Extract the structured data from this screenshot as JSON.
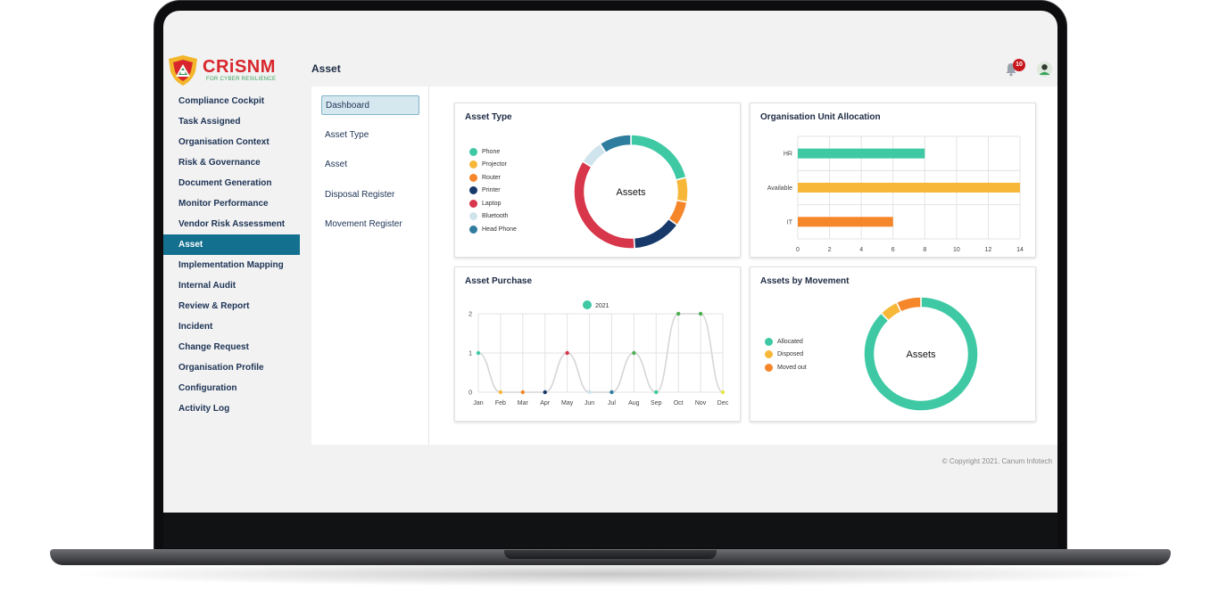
{
  "brand": {
    "name": "CRiSNM",
    "tagline": "FOR CYBER RESILIENCE"
  },
  "sidebar": {
    "items": [
      {
        "label": "Compliance Cockpit"
      },
      {
        "label": "Task Assigned"
      },
      {
        "label": "Organisation Context"
      },
      {
        "label": "Risk & Governance"
      },
      {
        "label": "Document Generation"
      },
      {
        "label": "Monitor Performance"
      },
      {
        "label": "Vendor Risk Assessment"
      },
      {
        "label": "Asset",
        "active": true
      },
      {
        "label": "Implementation Mapping"
      },
      {
        "label": "Internal Audit"
      },
      {
        "label": "Review & Report"
      },
      {
        "label": "Incident"
      },
      {
        "label": "Change Request"
      },
      {
        "label": "Organisation Profile"
      },
      {
        "label": "Configuration"
      },
      {
        "label": "Activity Log"
      }
    ]
  },
  "header": {
    "title": "Asset",
    "notification_count": "10"
  },
  "submenu": {
    "items": [
      {
        "label": "Dashboard",
        "active": true
      },
      {
        "label": "Asset Type"
      },
      {
        "label": "Asset"
      },
      {
        "label": "Disposal Register"
      },
      {
        "label": "Movement Register"
      }
    ]
  },
  "cards": {
    "asset_type": {
      "title": "Asset Type"
    },
    "org_unit": {
      "title": "Organisation Unit Allocation"
    },
    "asset_purchase": {
      "title": "Asset Purchase"
    },
    "movement": {
      "title": "Assets by Movement"
    }
  },
  "footer": {
    "text": "© Copyright 2021. Canum Infotech"
  },
  "chart_data": [
    {
      "type": "pie",
      "title": "Asset Type",
      "center_label": "Assets",
      "labels": [
        "Phone",
        "Projector",
        "Router",
        "Printer",
        "Laptop",
        "Bluetooth",
        "Head Phone"
      ],
      "values": [
        3,
        1,
        1,
        2,
        5,
        1,
        1.3
      ],
      "colors": [
        "#3ec9a4",
        "#f7b83a",
        "#f5862a",
        "#173a6b",
        "#d8364a",
        "#cfe4ec",
        "#2f7d9e"
      ],
      "legend": "left"
    },
    {
      "type": "bar",
      "orientation": "horizontal",
      "title": "Organisation Unit Allocation",
      "categories": [
        "HR",
        "Available",
        "IT"
      ],
      "values": [
        8,
        14,
        6
      ],
      "colors": [
        "#3ec9a4",
        "#f7b83a",
        "#f5862a"
      ],
      "xlim": [
        0,
        14
      ],
      "xticks": [
        0,
        2,
        4,
        6,
        8,
        10,
        12,
        14
      ],
      "grid": true
    },
    {
      "type": "line",
      "title": "Asset Purchase",
      "categories": [
        "Jan",
        "Feb",
        "Mar",
        "Apr",
        "May",
        "Jun",
        "Jul",
        "Aug",
        "Sep",
        "Oct",
        "Nov",
        "Dec"
      ],
      "series": [
        {
          "name": "2021",
          "values": [
            1,
            0,
            0,
            0,
            1,
            0,
            0,
            1,
            0,
            2,
            2,
            0
          ]
        }
      ],
      "point_colors": [
        "#3ec9a4",
        "#f7b83a",
        "#f5862a",
        "#173a6b",
        "#d8364a",
        "#cfe4ec",
        "#2f7d9e",
        "#4caf50",
        "#3ec9a4",
        "#4caf50",
        "#4caf50",
        "#e6e84a"
      ],
      "ylim": [
        0,
        2
      ],
      "yticks": [
        0,
        1,
        2
      ],
      "grid": true,
      "legend": "top"
    },
    {
      "type": "pie",
      "title": "Assets by Movement",
      "center_label": "Assets",
      "labels": [
        "Allocated",
        "Disposed",
        "Moved out"
      ],
      "values": [
        20,
        1.2,
        1.6
      ],
      "colors": [
        "#3ec9a4",
        "#f7b83a",
        "#f5862a"
      ],
      "legend": "left"
    }
  ]
}
